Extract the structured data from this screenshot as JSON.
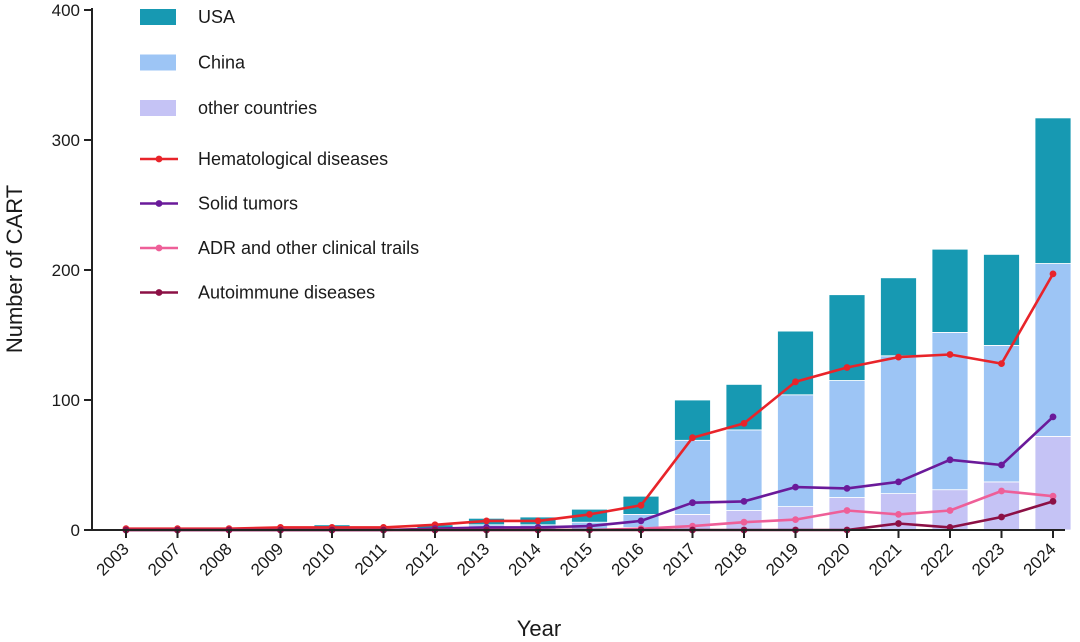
{
  "chart_data": {
    "type": "bar",
    "stacked": true,
    "xlabel": "Year",
    "ylabel": "Number of CART",
    "ylim": [
      0,
      400
    ],
    "yticks": [
      0,
      100,
      200,
      300,
      400
    ],
    "categories": [
      "2003",
      "2007",
      "2008",
      "2009",
      "2010",
      "2011",
      "2012",
      "2013",
      "2014",
      "2015",
      "2016",
      "2017",
      "2018",
      "2019",
      "2020",
      "2021",
      "2022",
      "2023",
      "2024"
    ],
    "bar_series": [
      {
        "name": "other countries",
        "color": "#c5c3f5",
        "values": [
          0,
          0,
          0,
          0,
          0,
          0,
          0,
          0,
          0,
          0,
          2,
          12,
          15,
          18,
          25,
          28,
          31,
          37,
          72
        ]
      },
      {
        "name": "China",
        "color": "#9dc5f5",
        "values": [
          0,
          0,
          0,
          0,
          1,
          0,
          1,
          4,
          4,
          6,
          10,
          57,
          62,
          86,
          90,
          106,
          121,
          105,
          133
        ]
      },
      {
        "name": "USA",
        "color": "#1799b2",
        "values": [
          1,
          0,
          0,
          1,
          3,
          1,
          3,
          5,
          6,
          10,
          14,
          31,
          35,
          49,
          66,
          60,
          64,
          70,
          112
        ]
      }
    ],
    "line_series": [
      {
        "name": "Hematological diseases",
        "color": "#e8242a",
        "values": [
          1,
          1,
          1,
          2,
          2,
          2,
          4,
          7,
          7,
          12,
          19,
          71,
          82,
          114,
          125,
          133,
          135,
          128,
          197
        ]
      },
      {
        "name": "Solid tumors",
        "color": "#6a1a9a",
        "values": [
          0,
          0,
          0,
          0,
          0,
          0,
          1,
          2,
          2,
          3,
          7,
          21,
          22,
          33,
          32,
          37,
          54,
          50,
          87
        ]
      },
      {
        "name": "ADR and other clinical trails",
        "color": "#ee5f98",
        "values": [
          0,
          0,
          0,
          0,
          0,
          0,
          0,
          0,
          0,
          0,
          1,
          3,
          6,
          8,
          15,
          12,
          15,
          30,
          26
        ]
      },
      {
        "name": "Autoimmune diseases",
        "color": "#8c1045",
        "values": [
          0,
          0,
          0,
          0,
          0,
          0,
          0,
          0,
          0,
          0,
          0,
          0,
          0,
          0,
          0,
          5,
          2,
          10,
          22
        ]
      }
    ],
    "legend": [
      {
        "label": "USA",
        "kind": "bar",
        "color": "#1799b2"
      },
      {
        "label": "China",
        "kind": "bar",
        "color": "#9dc5f5"
      },
      {
        "label": "other countries",
        "kind": "bar",
        "color": "#c5c3f5"
      },
      {
        "label": "Hematological diseases",
        "kind": "line",
        "color": "#e8242a"
      },
      {
        "label": "Solid tumors",
        "kind": "line",
        "color": "#6a1a9a"
      },
      {
        "label": "ADR and other clinical trails",
        "kind": "line",
        "color": "#ee5f98"
      },
      {
        "label": "Autoimmune diseases",
        "kind": "line",
        "color": "#8c1045"
      }
    ],
    "legend_position": "top-left"
  }
}
